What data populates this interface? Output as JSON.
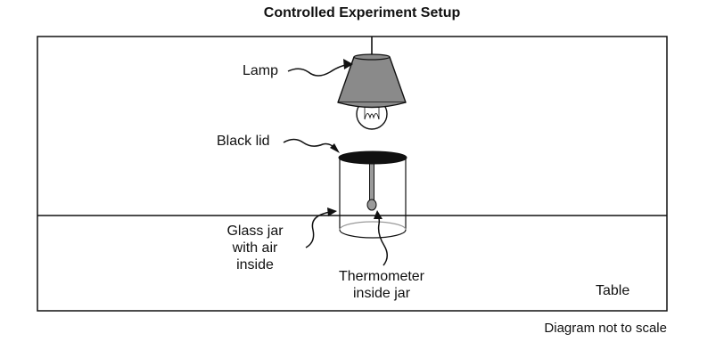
{
  "title": "Controlled Experiment Setup",
  "labels": {
    "lamp": "Lamp",
    "lid": "Black lid",
    "jar_line1": "Glass jar",
    "jar_line2": "with air",
    "jar_line3": "inside",
    "thermo_line1": "Thermometer",
    "thermo_line2": "inside jar",
    "table": "Table"
  },
  "note": "Diagram not to scale",
  "colors": {
    "ink": "#111111",
    "lampshade": "#8a8a8a",
    "lid": "#111111",
    "thermometer": "#9a9a9a",
    "jar_bottom": "#9a9a9a"
  }
}
